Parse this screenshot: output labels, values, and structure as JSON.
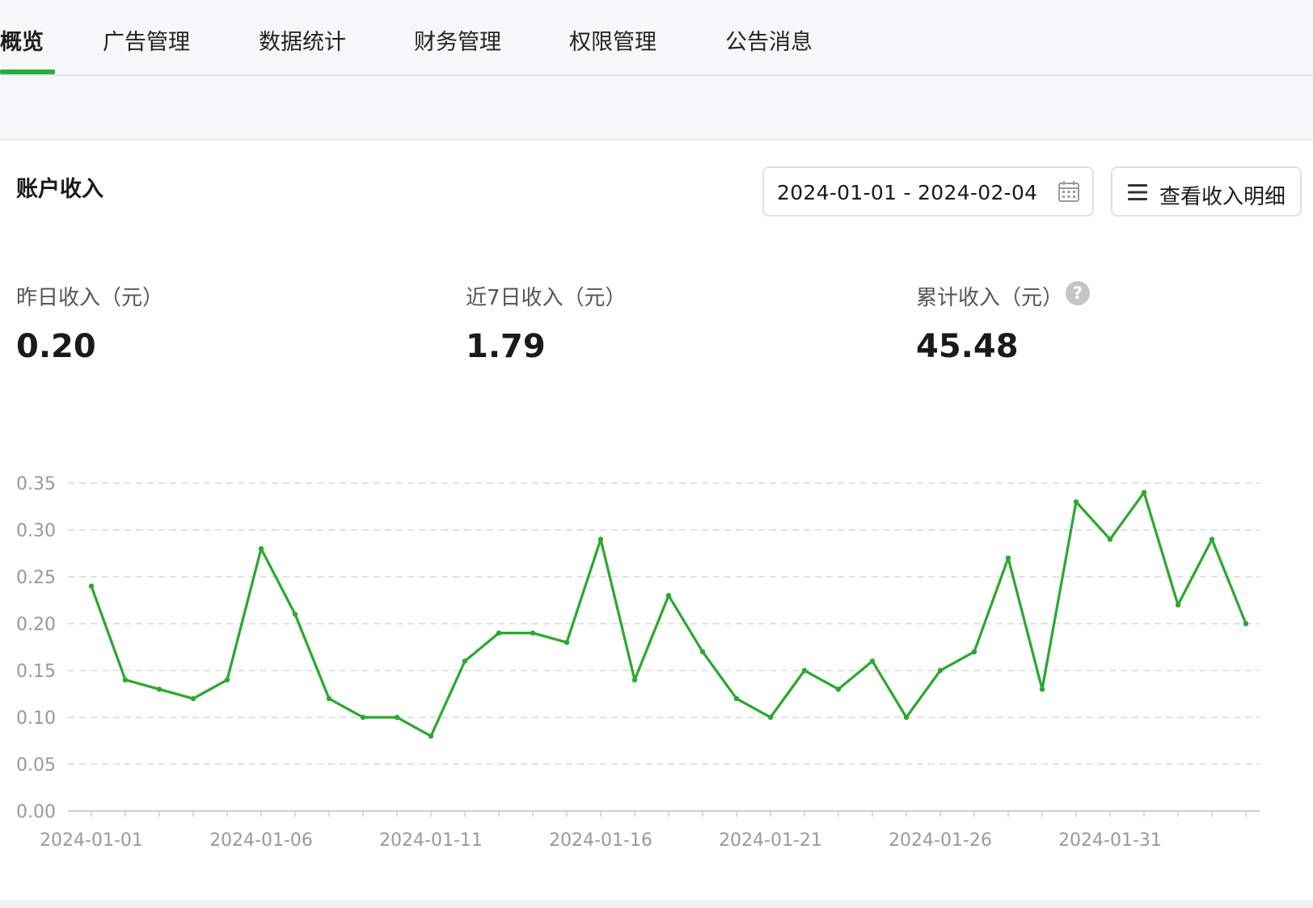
{
  "nav": {
    "tabs": [
      {
        "label": "概览",
        "active": true
      },
      {
        "label": "广告管理",
        "active": false
      },
      {
        "label": "数据统计",
        "active": false
      },
      {
        "label": "财务管理",
        "active": false
      },
      {
        "label": "权限管理",
        "active": false
      },
      {
        "label": "公告消息",
        "active": false
      }
    ]
  },
  "panel": {
    "title": "账户收入",
    "date_range": "2024-01-01 - 2024-02-04",
    "detail_button": "查看收入明细"
  },
  "stats": [
    {
      "label": "昨日收入（元）",
      "value": "0.20"
    },
    {
      "label": "近7日收入（元）",
      "value": "1.79"
    },
    {
      "label": "累计收入（元）",
      "value": "45.48",
      "help": "?"
    }
  ],
  "colors": {
    "accent": "#2aae3b",
    "line": "#2aa82f",
    "grid": "#d9d9d9",
    "axis_text": "#999999"
  },
  "icons": {
    "date_picker": "calendar-icon",
    "detail_button": "list-icon",
    "help": "question-circle-icon"
  },
  "chart_data": {
    "type": "line",
    "title": "",
    "xlabel": "",
    "ylabel": "",
    "ylim": [
      0,
      0.35
    ],
    "yticks": [
      "0.00",
      "0.05",
      "0.10",
      "0.15",
      "0.20",
      "0.25",
      "0.30",
      "0.35"
    ],
    "grid": true,
    "x": [
      "2024-01-01",
      "2024-01-02",
      "2024-01-03",
      "2024-01-04",
      "2024-01-05",
      "2024-01-06",
      "2024-01-07",
      "2024-01-08",
      "2024-01-09",
      "2024-01-10",
      "2024-01-11",
      "2024-01-12",
      "2024-01-13",
      "2024-01-14",
      "2024-01-15",
      "2024-01-16",
      "2024-01-17",
      "2024-01-18",
      "2024-01-19",
      "2024-01-20",
      "2024-01-21",
      "2024-01-22",
      "2024-01-23",
      "2024-01-24",
      "2024-01-25",
      "2024-01-26",
      "2024-01-27",
      "2024-01-28",
      "2024-01-29",
      "2024-01-30",
      "2024-01-31",
      "2024-02-01",
      "2024-02-02",
      "2024-02-03",
      "2024-02-04"
    ],
    "xtick_labels": [
      "2024-01-01",
      "2024-01-06",
      "2024-01-11",
      "2024-01-16",
      "2024-01-21",
      "2024-01-26",
      "2024-01-31"
    ],
    "series": [
      {
        "values": [
          0.24,
          0.14,
          0.13,
          0.12,
          0.14,
          0.28,
          0.21,
          0.12,
          0.1,
          0.1,
          0.08,
          0.16,
          0.19,
          0.19,
          0.18,
          0.29,
          0.14,
          0.23,
          0.17,
          0.12,
          0.1,
          0.15,
          0.13,
          0.16,
          0.1,
          0.15,
          0.17,
          0.27,
          0.13,
          0.33,
          0.29,
          0.34,
          0.22,
          0.29,
          0.2
        ]
      }
    ]
  }
}
